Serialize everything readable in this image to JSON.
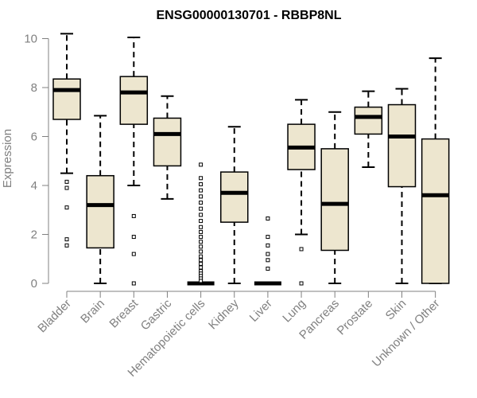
{
  "chart_data": {
    "type": "boxplot",
    "title": "ENSG00000130701 - RBBP8NL",
    "xlabel": "",
    "ylabel": "Expression",
    "ylim": [
      0,
      10
    ],
    "yticks": [
      0,
      2,
      4,
      6,
      8,
      10
    ],
    "box_fill": "#ede6cf",
    "categories": [
      "Bladder",
      "Brain",
      "Breast",
      "Gastric",
      "Hematopoietic cells",
      "Kidney",
      "Liver",
      "Lung",
      "Pancreas",
      "Prostate",
      "Skin",
      "Unknown / Other"
    ],
    "series": [
      {
        "name": "Bladder",
        "whisker_low": 4.5,
        "q1": 6.7,
        "median": 7.9,
        "q3": 8.35,
        "whisker_high": 10.2,
        "outliers": [
          4.15,
          3.9,
          3.1,
          1.8,
          1.55
        ]
      },
      {
        "name": "Brain",
        "whisker_low": 0.0,
        "q1": 1.45,
        "median": 3.2,
        "q3": 4.4,
        "whisker_high": 6.85,
        "outliers": []
      },
      {
        "name": "Breast",
        "whisker_low": 4.0,
        "q1": 6.5,
        "median": 7.8,
        "q3": 8.45,
        "whisker_high": 10.05,
        "outliers": [
          2.75,
          1.9,
          1.2,
          0.0
        ]
      },
      {
        "name": "Gastric",
        "whisker_low": 3.45,
        "q1": 4.8,
        "median": 6.1,
        "q3": 6.75,
        "whisker_high": 7.65,
        "outliers": []
      },
      {
        "name": "Hematopoietic cells",
        "whisker_low": 0.0,
        "q1": 0.0,
        "median": 0.0,
        "q3": 0.0,
        "whisker_high": 0.0,
        "outliers": [
          4.85,
          4.3,
          4.05,
          3.8,
          3.55,
          3.3,
          3.05,
          2.8,
          2.55,
          2.3,
          2.1,
          1.9,
          1.7,
          1.5,
          1.3,
          1.1,
          0.95,
          0.8,
          0.65,
          0.5,
          0.4,
          0.3,
          0.2,
          0.1
        ]
      },
      {
        "name": "Kidney",
        "whisker_low": 0.0,
        "q1": 2.5,
        "median": 3.7,
        "q3": 4.55,
        "whisker_high": 6.4,
        "outliers": []
      },
      {
        "name": "Liver",
        "whisker_low": 0.0,
        "q1": 0.0,
        "median": 0.0,
        "q3": 0.0,
        "whisker_high": 0.0,
        "outliers": [
          2.65,
          1.9,
          1.55,
          1.2,
          0.95,
          0.6
        ]
      },
      {
        "name": "Lung",
        "whisker_low": 2.0,
        "q1": 4.65,
        "median": 5.55,
        "q3": 6.5,
        "whisker_high": 7.5,
        "outliers": [
          1.4,
          0.0
        ]
      },
      {
        "name": "Pancreas",
        "whisker_low": 0.0,
        "q1": 1.35,
        "median": 3.25,
        "q3": 5.5,
        "whisker_high": 7.0,
        "outliers": []
      },
      {
        "name": "Prostate",
        "whisker_low": 4.75,
        "q1": 6.1,
        "median": 6.8,
        "q3": 7.2,
        "whisker_high": 7.85,
        "outliers": []
      },
      {
        "name": "Skin",
        "whisker_low": 0.0,
        "q1": 3.95,
        "median": 6.0,
        "q3": 7.3,
        "whisker_high": 7.95,
        "outliers": []
      },
      {
        "name": "Unknown / Other",
        "whisker_low": 0.0,
        "q1": 0.0,
        "median": 3.6,
        "q3": 5.9,
        "whisker_high": 9.2,
        "outliers": []
      }
    ]
  }
}
